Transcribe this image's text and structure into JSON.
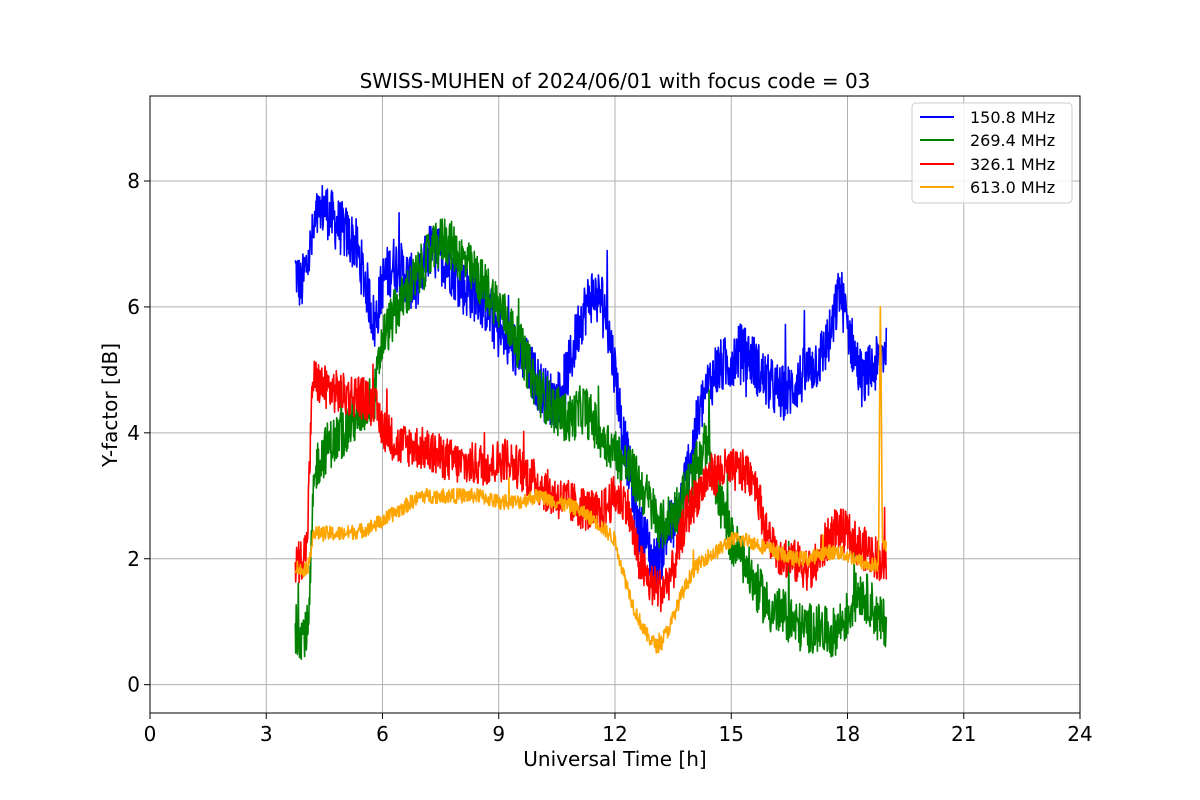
{
  "chart_data": {
    "type": "line",
    "title": "SWISS-MUHEN of 2024/06/01 with focus code = 03",
    "xlabel": "Universal Time [h]",
    "ylabel": "Y-factor [dB]",
    "xlim": [
      0,
      24
    ],
    "ylim": [
      -0.45,
      9.35
    ],
    "xticks": [
      0,
      3,
      6,
      9,
      12,
      15,
      18,
      21,
      24
    ],
    "yticks": [
      0,
      2,
      4,
      6,
      8
    ],
    "grid": true,
    "legend_position": "top-right",
    "series": [
      {
        "name": "150.8 MHz",
        "color": "#0000ff",
        "noise": 0.45,
        "x": [
          3.75,
          3.9,
          4.1,
          4.3,
          4.5,
          4.7,
          5.0,
          5.3,
          5.6,
          5.8,
          6.0,
          6.3,
          6.6,
          6.9,
          7.2,
          7.5,
          7.8,
          8.1,
          8.4,
          8.7,
          9.0,
          9.3,
          9.6,
          9.9,
          10.2,
          10.5,
          10.8,
          11.1,
          11.4,
          11.7,
          12.0,
          12.2,
          12.4,
          12.6,
          12.8,
          13.0,
          13.2,
          13.4,
          13.6,
          13.8,
          14.0,
          14.3,
          14.6,
          14.9,
          15.2,
          15.5,
          15.8,
          16.1,
          16.4,
          16.7,
          17.0,
          17.3,
          17.6,
          17.8,
          18.0,
          18.2,
          18.4,
          18.6,
          18.8,
          19.0
        ],
        "y": [
          6.6,
          6.3,
          6.8,
          7.4,
          7.6,
          7.4,
          7.2,
          7.0,
          6.3,
          5.7,
          6.4,
          6.7,
          6.5,
          6.3,
          6.9,
          6.8,
          6.6,
          6.3,
          6.2,
          6.0,
          5.6,
          5.4,
          5.2,
          4.9,
          4.6,
          4.5,
          5.0,
          5.8,
          6.2,
          6.1,
          5.0,
          4.0,
          3.3,
          2.5,
          2.3,
          1.9,
          2.1,
          2.5,
          2.6,
          3.2,
          3.8,
          4.6,
          5.0,
          5.1,
          5.3,
          5.2,
          4.9,
          4.7,
          4.6,
          4.8,
          5.0,
          5.2,
          5.6,
          6.3,
          5.7,
          5.2,
          4.8,
          5.0,
          5.1,
          5.4
        ]
      },
      {
        "name": "269.4 MHz",
        "color": "#008000",
        "noise": 0.4,
        "x": [
          3.75,
          3.9,
          4.1,
          4.2,
          4.3,
          4.6,
          5.0,
          5.4,
          5.8,
          6.0,
          6.4,
          6.8,
          7.2,
          7.6,
          8.0,
          8.4,
          8.8,
          9.2,
          9.6,
          10.0,
          10.4,
          10.8,
          11.2,
          11.6,
          12.0,
          12.4,
          12.8,
          13.2,
          13.6,
          14.0,
          14.4,
          14.7,
          15.0,
          15.3,
          15.6,
          16.0,
          16.4,
          16.8,
          17.2,
          17.6,
          18.0,
          18.3,
          18.6,
          18.8,
          19.0
        ],
        "y": [
          0.9,
          0.8,
          0.9,
          2.8,
          3.5,
          3.8,
          4.0,
          4.3,
          4.6,
          5.5,
          6.0,
          6.4,
          6.8,
          7.1,
          6.8,
          6.5,
          6.2,
          5.8,
          5.3,
          4.7,
          4.4,
          4.2,
          4.4,
          4.0,
          3.7,
          3.4,
          3.0,
          2.5,
          2.8,
          3.3,
          3.9,
          2.9,
          2.3,
          2.0,
          1.6,
          1.2,
          1.1,
          0.9,
          0.9,
          0.8,
          1.1,
          1.5,
          1.3,
          1.0,
          1.0
        ]
      },
      {
        "name": "326.1 MHz",
        "color": "#ff0000",
        "noise": 0.35,
        "x": [
          3.75,
          3.9,
          4.05,
          4.2,
          4.3,
          4.6,
          5.0,
          5.4,
          5.8,
          6.0,
          6.4,
          6.8,
          7.2,
          7.6,
          8.0,
          8.4,
          8.8,
          9.2,
          9.6,
          10.0,
          10.4,
          10.8,
          11.2,
          11.6,
          12.0,
          12.3,
          12.6,
          12.9,
          13.2,
          13.5,
          13.8,
          14.1,
          14.4,
          14.8,
          15.2,
          15.6,
          15.9,
          16.2,
          16.5,
          16.8,
          17.1,
          17.4,
          17.7,
          18.0,
          18.3,
          18.6,
          18.8,
          19.0
        ],
        "y": [
          1.9,
          2.0,
          2.2,
          4.9,
          4.8,
          4.7,
          4.6,
          4.6,
          4.4,
          4.1,
          3.8,
          3.8,
          3.7,
          3.6,
          3.5,
          3.5,
          3.5,
          3.6,
          3.4,
          3.2,
          3.0,
          2.9,
          2.8,
          2.7,
          3.0,
          2.9,
          2.0,
          1.6,
          1.5,
          1.8,
          2.6,
          3.0,
          3.3,
          3.4,
          3.4,
          3.3,
          2.4,
          2.1,
          2.0,
          1.9,
          1.8,
          2.2,
          2.5,
          2.4,
          2.2,
          2.1,
          2.0,
          1.9
        ]
      },
      {
        "name": "613.0 MHz",
        "color": "#ffa500",
        "noise": 0.12,
        "x": [
          3.75,
          3.9,
          4.1,
          4.2,
          4.3,
          4.6,
          5.0,
          5.5,
          6.0,
          6.5,
          7.0,
          7.5,
          8.0,
          8.5,
          9.0,
          9.5,
          10.0,
          10.5,
          11.0,
          11.5,
          12.0,
          12.2,
          12.5,
          12.8,
          13.1,
          13.4,
          13.7,
          14.0,
          14.3,
          14.6,
          15.0,
          15.4,
          15.8,
          16.2,
          16.6,
          17.0,
          17.4,
          17.8,
          18.2,
          18.5,
          18.8,
          18.85,
          18.9,
          19.0
        ],
        "y": [
          1.9,
          1.8,
          1.9,
          2.4,
          2.4,
          2.4,
          2.4,
          2.45,
          2.6,
          2.8,
          3.0,
          3.0,
          3.0,
          3.0,
          2.9,
          2.9,
          3.0,
          2.9,
          2.8,
          2.6,
          2.3,
          1.8,
          1.2,
          0.8,
          0.6,
          0.9,
          1.4,
          1.8,
          2.0,
          2.1,
          2.3,
          2.3,
          2.2,
          2.1,
          2.0,
          2.0,
          2.1,
          2.1,
          2.0,
          1.9,
          1.9,
          6.2,
          2.2,
          2.2
        ]
      }
    ]
  }
}
